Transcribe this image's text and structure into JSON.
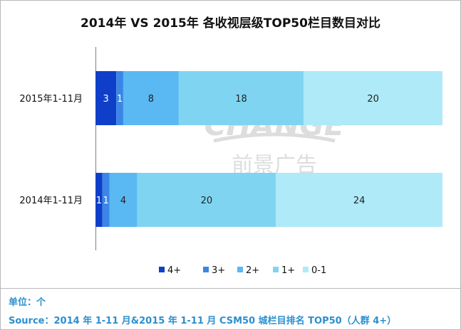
{
  "chart_data": {
    "type": "bar",
    "orientation": "horizontal",
    "stacked": true,
    "title": "2014年 VS 2015年 各收视层级TOP50栏目数目对比",
    "categories": [
      "2015年1-11月",
      "2014年1-11月"
    ],
    "series": [
      {
        "name": "4+",
        "color": "#0f3fc9",
        "values": [
          3,
          1
        ]
      },
      {
        "name": "3+",
        "color": "#3a86e6",
        "values": [
          1,
          1
        ]
      },
      {
        "name": "2+",
        "color": "#5ab8f2",
        "values": [
          8,
          4
        ]
      },
      {
        "name": "1+",
        "color": "#7fd5f1",
        "values": [
          18,
          20
        ]
      },
      {
        "name": "0-1",
        "color": "#aeeaf8",
        "values": [
          20,
          24
        ]
      }
    ],
    "xlim": [
      0,
      50
    ],
    "legend_position": "bottom",
    "grid": false
  },
  "footer": {
    "unit": "单位：个",
    "source": "Source：2014 年 1-11 月&2015 年 1-11 月  CSM50 城栏目排名 TOP50（人群 4+）"
  },
  "watermark": {
    "line1": "CHANGE",
    "line2": "前景广告"
  }
}
